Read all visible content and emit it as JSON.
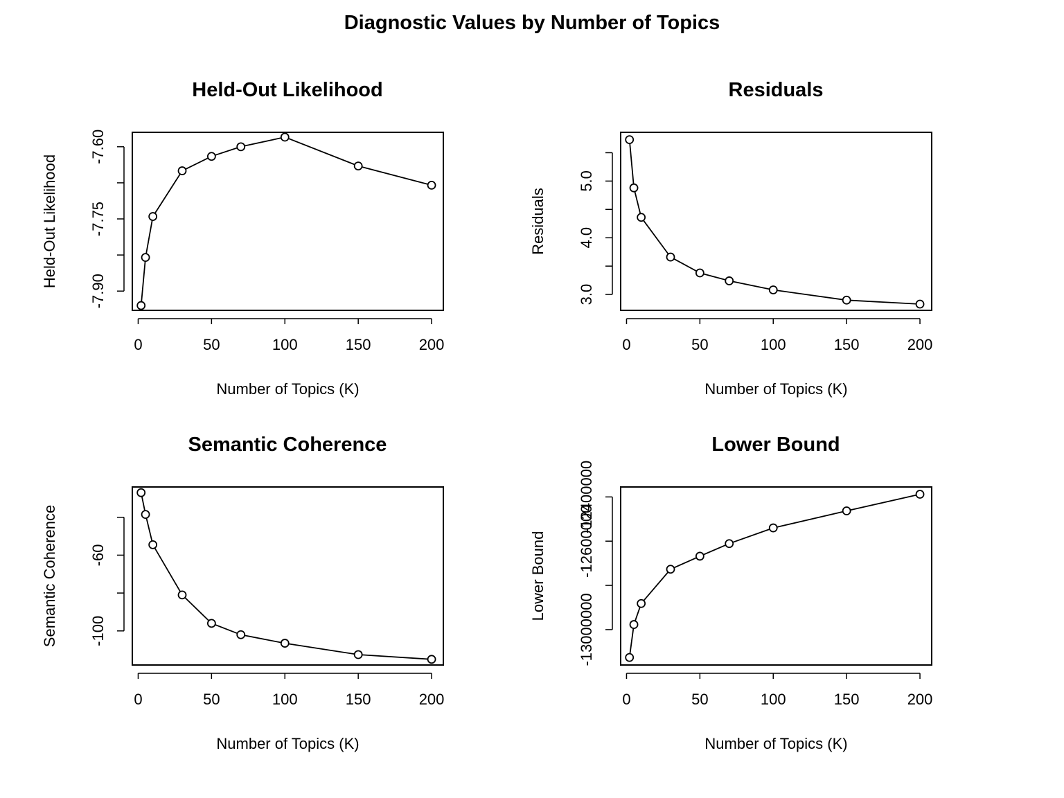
{
  "title": "Diagnostic Values by Number of Topics",
  "chart_data": [
    {
      "type": "line",
      "title": "Held-Out Likelihood",
      "xlabel": "Number of Topics (K)",
      "ylabel": "Held-Out Likelihood",
      "x": [
        2,
        5,
        10,
        30,
        50,
        70,
        100,
        150,
        200
      ],
      "values": [
        -7.93,
        -7.83,
        -7.745,
        -7.65,
        -7.62,
        -7.6,
        -7.58,
        -7.64,
        -7.68
      ],
      "xlim": [
        -4,
        208
      ],
      "ylim": [
        -7.94,
        -7.57
      ],
      "xticks": [
        0,
        50,
        100,
        150,
        200
      ],
      "xtick_labels": [
        "0",
        "50",
        "100",
        "150",
        "200"
      ],
      "yticks": [
        -7.9,
        -7.825,
        -7.75,
        -7.675,
        -7.6
      ],
      "ytick_labels": [
        "-7.90",
        "",
        "-7.75",
        "",
        "-7.60"
      ],
      "ymajor": [
        -7.9,
        -7.85,
        -7.8,
        -7.75,
        -7.7,
        -7.65,
        -7.6
      ],
      "grid": false
    },
    {
      "type": "line",
      "title": "Residuals",
      "xlabel": "Number of Topics (K)",
      "ylabel": "Residuals",
      "x": [
        2,
        5,
        10,
        30,
        50,
        70,
        100,
        150,
        200
      ],
      "values": [
        5.73,
        4.88,
        4.36,
        3.66,
        3.38,
        3.24,
        3.08,
        2.9,
        2.83
      ],
      "xlim": [
        -4,
        208
      ],
      "ylim": [
        2.72,
        5.86
      ],
      "xticks": [
        0,
        50,
        100,
        150,
        200
      ],
      "xtick_labels": [
        "0",
        "50",
        "100",
        "150",
        "200"
      ],
      "yticks": [
        3.0,
        3.5,
        4.0,
        4.5,
        5.0,
        5.5
      ],
      "ytick_labels": [
        "3.0",
        "",
        "4.0",
        "",
        "5.0",
        ""
      ],
      "grid": false
    },
    {
      "type": "line",
      "title": "Semantic Coherence",
      "xlabel": "Number of Topics (K)",
      "ylabel": "Semantic Coherence",
      "x": [
        2,
        5,
        10,
        30,
        50,
        70,
        100,
        150,
        200
      ],
      "values": [
        -27,
        -38.5,
        -54.5,
        -81,
        -96,
        -102,
        -106.5,
        -112.5,
        -115
      ],
      "xlim": [
        -4,
        208
      ],
      "ylim": [
        -118,
        -24
      ],
      "xticks": [
        0,
        50,
        100,
        150,
        200
      ],
      "xtick_labels": [
        "0",
        "50",
        "100",
        "150",
        "200"
      ],
      "yticks": [
        -100,
        -80,
        -60,
        -40
      ],
      "ytick_labels": [
        "-100",
        "",
        "-60",
        ""
      ],
      "grid": false
    },
    {
      "type": "line",
      "title": "Lower Bound",
      "xlabel": "Number of Topics (K)",
      "ylabel": "Lower Bound",
      "x": [
        2,
        5,
        10,
        30,
        50,
        70,
        100,
        150,
        200
      ],
      "values": [
        -13126000,
        -12977000,
        -12882000,
        -12727000,
        -12668000,
        -12611000,
        -12540000,
        -12463000,
        -12388000
      ],
      "xlim": [
        -4,
        208
      ],
      "ylim": [
        -13160000,
        -12355000
      ],
      "xticks": [
        0,
        50,
        100,
        150,
        200
      ],
      "xtick_labels": [
        "0",
        "50",
        "100",
        "150",
        "200"
      ],
      "yticks": [
        -13000000,
        -12800000,
        -12600000,
        -12400000
      ],
      "ytick_labels": [
        "-13000000",
        "",
        "-12600000",
        "-12400000"
      ],
      "grid": false
    }
  ]
}
